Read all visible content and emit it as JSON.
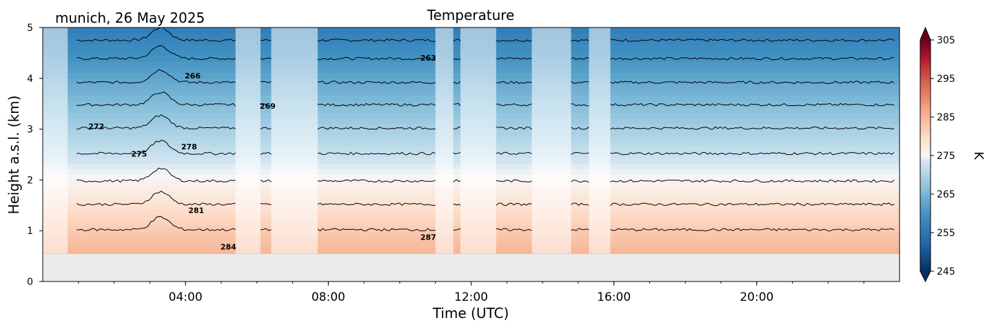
{
  "header": {
    "station": "munich, 26 May 2025",
    "title": "Temperature"
  },
  "chart_data": {
    "type": "heatmap",
    "title": "Temperature",
    "subtitle": "munich, 26 May 2025",
    "xlabel": "Time (UTC)",
    "ylabel": "Height a.s.l. (km)",
    "xlim_hours": [
      0,
      24
    ],
    "ylim": [
      0,
      5
    ],
    "x_ticks": [
      {
        "value": 4,
        "label": "04:00"
      },
      {
        "value": 8,
        "label": "08:00"
      },
      {
        "value": 12,
        "label": "12:00"
      },
      {
        "value": 16,
        "label": "16:00"
      },
      {
        "value": 20,
        "label": "20:00"
      }
    ],
    "y_ticks": [
      {
        "value": 0,
        "label": "0"
      },
      {
        "value": 1,
        "label": "1"
      },
      {
        "value": 2,
        "label": "2"
      },
      {
        "value": 3,
        "label": "3"
      },
      {
        "value": 4,
        "label": "4"
      },
      {
        "value": 5,
        "label": "5"
      }
    ],
    "data_bottom_km": 0.55,
    "colorbar": {
      "label": "K",
      "min": 245,
      "max": 305,
      "tick_labels": [
        "245",
        "255",
        "265",
        "275",
        "285",
        "295",
        "305"
      ],
      "colormap": "RdBu_r",
      "extend": "both"
    },
    "contour_labels": [
      {
        "x_hours": 1.5,
        "y_km": 3.0,
        "label": "272"
      },
      {
        "x_hours": 2.7,
        "y_km": 2.46,
        "label": "275"
      },
      {
        "x_hours": 4.1,
        "y_km": 2.6,
        "label": "278"
      },
      {
        "x_hours": 4.3,
        "y_km": 1.35,
        "label": "281"
      },
      {
        "x_hours": 5.2,
        "y_km": 0.63,
        "label": "284"
      },
      {
        "x_hours": 4.2,
        "y_km": 4.0,
        "label": "266"
      },
      {
        "x_hours": 6.3,
        "y_km": 3.4,
        "label": "269"
      },
      {
        "x_hours": 10.8,
        "y_km": 4.35,
        "label": "263"
      },
      {
        "x_hours": 10.8,
        "y_km": 0.82,
        "label": "287"
      }
    ],
    "contour_levels": [
      263,
      266,
      269,
      272,
      275,
      278,
      281,
      284,
      287
    ],
    "level_heights_km": [
      4.75,
      4.39,
      3.92,
      3.48,
      3.02,
      2.52,
      1.98,
      1.52,
      1.02
    ],
    "data_gaps_hours": [
      [
        0,
        0.7
      ],
      [
        5.4,
        6.1
      ],
      [
        6.4,
        7.7
      ],
      [
        11.0,
        11.5
      ],
      [
        11.7,
        12.7
      ],
      [
        13.7,
        14.8
      ],
      [
        15.3,
        15.9
      ]
    ]
  },
  "colors": {
    "missing_data": "#ebebeb",
    "contour_line": "#000000"
  }
}
